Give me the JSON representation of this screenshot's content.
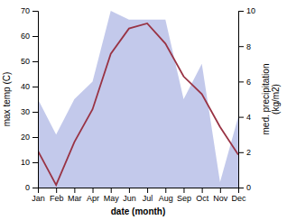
{
  "chart_data": {
    "type": "line",
    "xlabel": "date (month)",
    "ylabel": "max temp (C)",
    "y2label": "med. precipitation\n(kg/m2)",
    "categories": [
      "Jan",
      "Feb",
      "Mar",
      "Apr",
      "May",
      "Jun",
      "Jul",
      "Aug",
      "Sep",
      "Oct",
      "Nov",
      "Dec"
    ],
    "series": [
      {
        "type": "area",
        "color": "#b8c0e8",
        "axis": "y2",
        "values": [
          5.0,
          3.0,
          5.0,
          6.0,
          10.0,
          9.5,
          9.5,
          9.5,
          5.0,
          7.0,
          0.3,
          4.0
        ]
      },
      {
        "type": "line",
        "color": "#993344",
        "values": [
          14.5,
          1.0,
          18,
          31,
          53,
          63,
          65,
          57,
          44,
          37,
          24,
          13
        ]
      }
    ],
    "ylim": [
      0,
      70
    ],
    "yticks": [
      0,
      10,
      20,
      30,
      40,
      50,
      60,
      70
    ],
    "y2lim": [
      0,
      10
    ],
    "y2ticks": [
      0,
      2,
      4,
      6,
      8,
      10
    ],
    "grid": false
  }
}
